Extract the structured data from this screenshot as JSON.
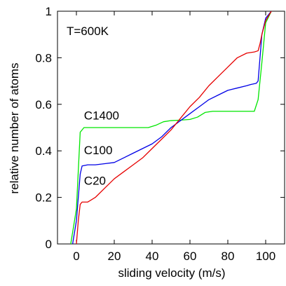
{
  "chart_data": {
    "type": "line",
    "title": "",
    "xlabel": "sliding velocity (m/s)",
    "ylabel": "relative number of atoms",
    "xlim": [
      -10,
      110
    ],
    "ylim": [
      0,
      1
    ],
    "grid": false,
    "x_ticks": [
      0,
      20,
      40,
      60,
      80,
      100
    ],
    "y_ticks": [
      0,
      0.2,
      0.4,
      0.6,
      0.8,
      1
    ],
    "x_tick_labels": [
      "0",
      "20",
      "40",
      "60",
      "80",
      "100"
    ],
    "y_tick_labels": [
      "0",
      "0.2",
      "0.4",
      "0.6",
      "0.8",
      "1"
    ],
    "annotation": "T=600K",
    "series": [
      {
        "name": "C1400",
        "color": "#00e600",
        "x": [
          -3,
          0,
          2,
          4,
          10,
          20,
          30,
          38,
          42,
          46,
          50,
          55,
          60,
          64,
          68,
          72,
          80,
          90,
          94,
          96,
          98,
          100,
          103
        ],
        "y": [
          0,
          0.15,
          0.48,
          0.5,
          0.5,
          0.5,
          0.5,
          0.5,
          0.51,
          0.525,
          0.53,
          0.532,
          0.535,
          0.545,
          0.565,
          0.57,
          0.57,
          0.57,
          0.57,
          0.62,
          0.78,
          0.95,
          1.0
        ]
      },
      {
        "name": "C100",
        "color": "#0000e6",
        "x": [
          -2,
          0,
          1,
          2,
          3,
          6,
          10,
          15,
          20,
          25,
          30,
          35,
          40,
          45,
          50,
          55,
          60,
          65,
          70,
          75,
          80,
          85,
          90,
          92,
          95,
          96,
          97,
          98,
          100,
          103
        ],
        "y": [
          0,
          0.1,
          0.2,
          0.3,
          0.335,
          0.34,
          0.34,
          0.345,
          0.35,
          0.37,
          0.39,
          0.41,
          0.43,
          0.46,
          0.5,
          0.53,
          0.56,
          0.59,
          0.62,
          0.64,
          0.66,
          0.67,
          0.68,
          0.685,
          0.69,
          0.7,
          0.8,
          0.9,
          0.97,
          1.0
        ]
      },
      {
        "name": "C20",
        "color": "#e60000",
        "x": [
          0,
          1,
          2,
          3,
          6,
          10,
          15,
          20,
          25,
          30,
          35,
          40,
          45,
          50,
          55,
          60,
          65,
          70,
          75,
          80,
          85,
          90,
          94,
          96,
          97,
          98,
          100,
          103
        ],
        "y": [
          0,
          0.1,
          0.17,
          0.18,
          0.18,
          0.2,
          0.24,
          0.28,
          0.31,
          0.34,
          0.37,
          0.41,
          0.45,
          0.49,
          0.54,
          0.59,
          0.63,
          0.68,
          0.72,
          0.76,
          0.8,
          0.82,
          0.825,
          0.83,
          0.86,
          0.9,
          0.96,
          1.0
        ]
      }
    ]
  }
}
